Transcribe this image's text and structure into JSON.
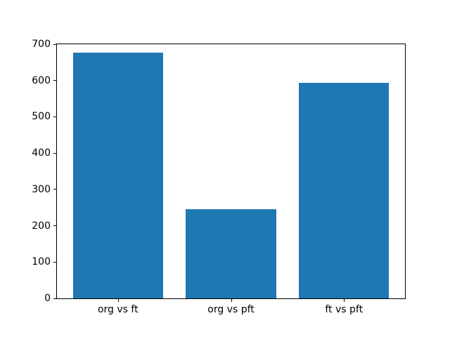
{
  "chart_data": {
    "type": "bar",
    "title": "",
    "xlabel": "",
    "ylabel": "",
    "categories": [
      "org vs ft",
      "org vs pft",
      "ft vs pft"
    ],
    "values": [
      676,
      245,
      593
    ],
    "bar_color": "#1f77b4",
    "background_color": "#ffffff",
    "spine_color": "#000000",
    "text_color": "#000000",
    "ylim": [
      0,
      700
    ],
    "yticks": [
      0,
      100,
      200,
      300,
      400,
      500,
      600,
      700
    ],
    "xlim": [
      -0.54,
      2.54
    ],
    "bar_width": 0.8,
    "grid": false,
    "legend": false
  }
}
